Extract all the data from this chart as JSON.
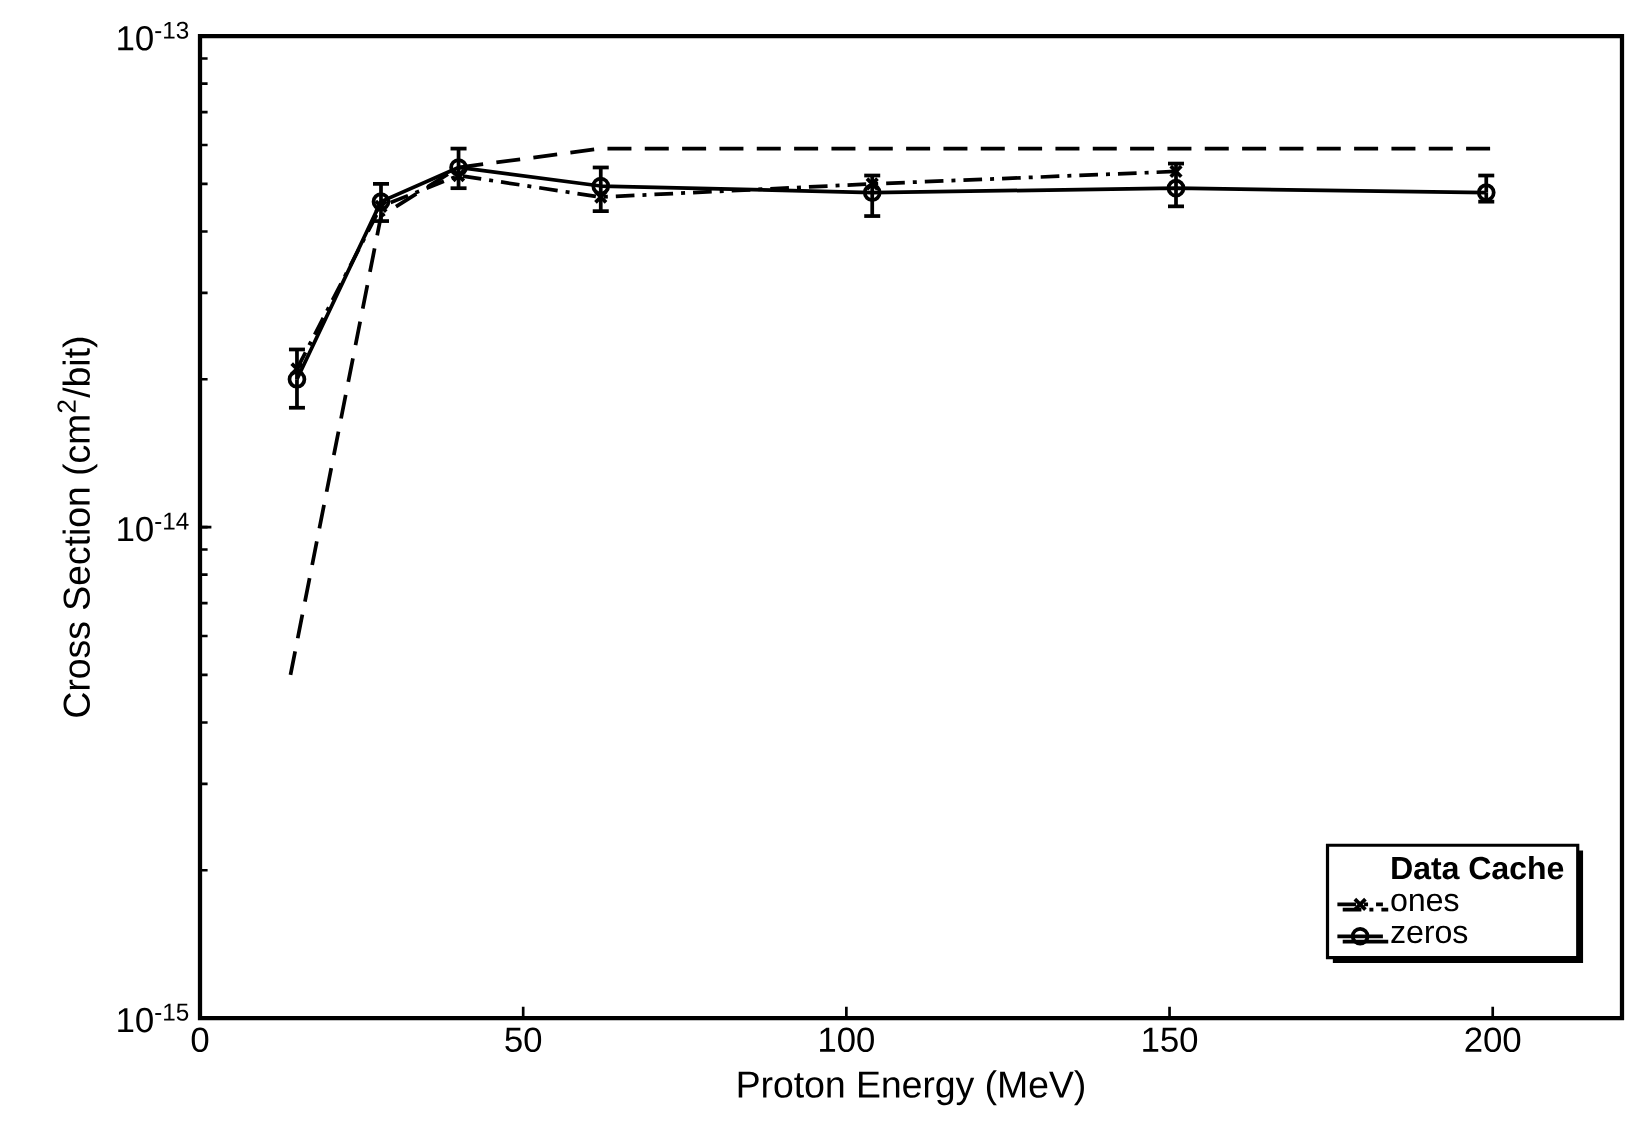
{
  "chart_data": {
    "type": "line",
    "xlabel": "Proton Energy (MeV)",
    "ylabel": "Cross Section (cm$^{2}$/bit)",
    "legend_title": "Data Cache",
    "log": "y",
    "grid": false,
    "legend": "bottom right",
    "xlim": [
      0,
      220
    ],
    "ylim": [
      1e-15,
      1e-13
    ],
    "xticks": [
      0,
      50,
      100,
      150,
      200
    ],
    "yticks": [
      {
        "value": 1e-15,
        "label": "10$^{-15}$"
      },
      {
        "value": 1e-14,
        "label": "10$^{-14}$"
      },
      {
        "value": 1e-13,
        "label": "10$^{-13}$"
      }
    ],
    "series": [
      {
        "color": "#000000",
        "line_style": "dashed",
        "marker": "none",
        "x": [
          14,
          28,
          40,
          62,
          200
        ],
        "values": [
          5e-15,
          4.3e-14,
          5.4e-14,
          5.9e-14,
          5.9e-14
        ]
      },
      {
        "name": "ones",
        "color": "#000000",
        "line_style": "dashdotted",
        "marker": "cross",
        "x": [
          15,
          28,
          40,
          62,
          104,
          151
        ],
        "values": [
          2.1e-14,
          4.5e-14,
          5.2e-14,
          4.7e-14,
          5e-14,
          5.3e-14
        ]
      },
      {
        "name": "zeros",
        "color": "#000000",
        "line_style": "solid",
        "marker": "circle",
        "x": [
          15,
          28,
          40,
          62,
          104,
          151,
          199
        ],
        "values": [
          2e-14,
          4.6e-14,
          5.4e-14,
          4.95e-14,
          4.8e-14,
          4.9e-14,
          4.8e-14
        ],
        "errors": [
          [
            1.75e-14,
            2.3e-14
          ],
          [
            4.2e-14,
            5e-14
          ],
          [
            4.9e-14,
            5.9e-14
          ],
          [
            4.4e-14,
            5.4e-14
          ],
          [
            4.3e-14,
            5.2e-14
          ],
          [
            4.5e-14,
            5.5e-14
          ],
          [
            4.6e-14,
            5.2e-14
          ]
        ]
      }
    ]
  }
}
